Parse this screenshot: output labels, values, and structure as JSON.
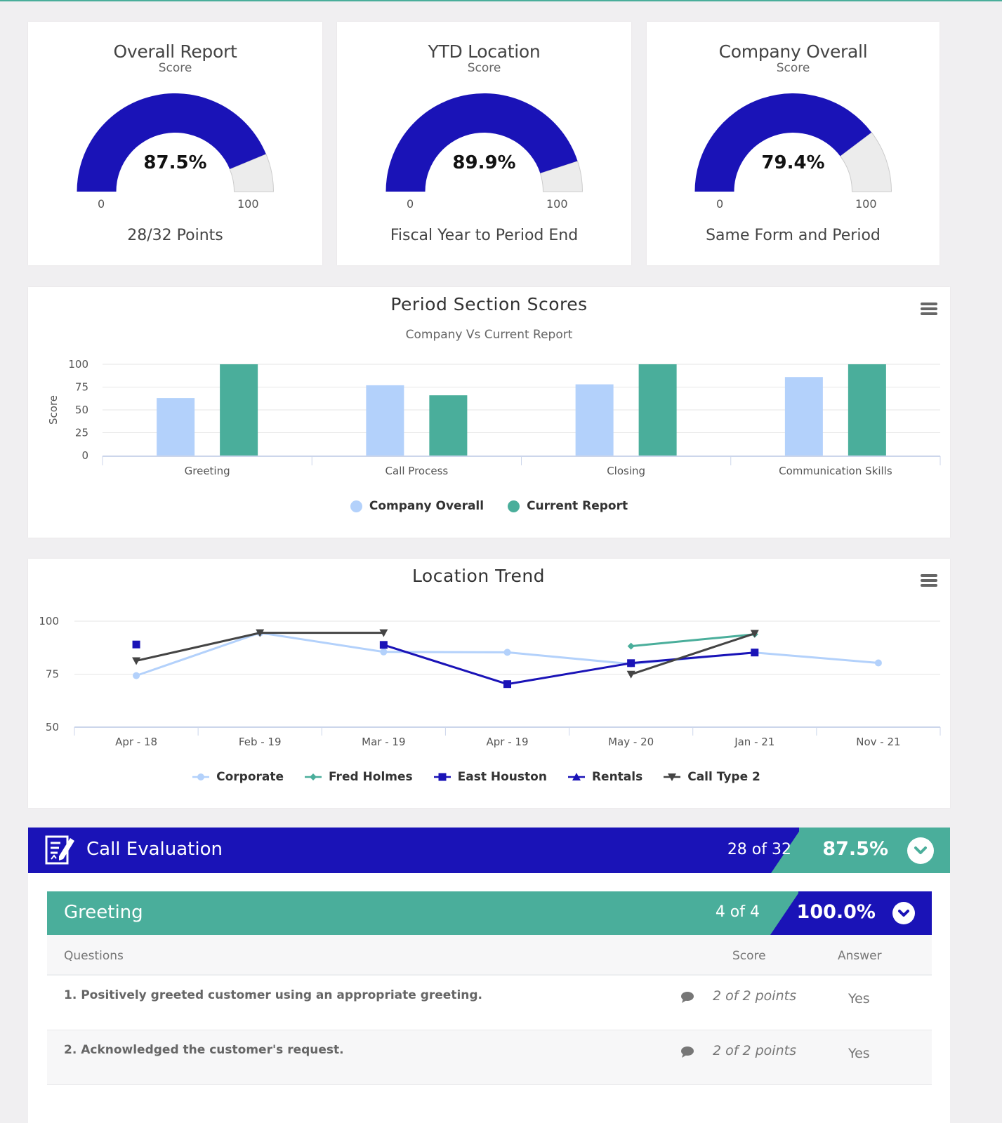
{
  "colors": {
    "primary_blue": "#1a13b7",
    "teal": "#4aae9b",
    "light_blue": "#b3d1fb",
    "gauge_track": "#ececec",
    "dark_gray": "#444444"
  },
  "gauges": [
    {
      "title": "Overall Report",
      "subtitle": "Score",
      "value": 87.5,
      "value_label": "87.5%",
      "min": "0",
      "max": "100",
      "footer": "28/32 Points"
    },
    {
      "title": "YTD Location",
      "subtitle": "Score",
      "value": 89.9,
      "value_label": "89.9%",
      "min": "0",
      "max": "100",
      "footer": "Fiscal Year to Period End"
    },
    {
      "title": "Company Overall",
      "subtitle": "Score",
      "value": 79.4,
      "value_label": "79.4%",
      "min": "0",
      "max": "100",
      "footer": "Same Form and Period"
    }
  ],
  "chart_data": [
    {
      "type": "bar",
      "title": "Period Section Scores",
      "subtitle": "Company Vs Current Report",
      "xlabel": "",
      "ylabel": "Score",
      "ylim": [
        0,
        100
      ],
      "yticks": [
        "0",
        "25",
        "50",
        "75",
        "100"
      ],
      "grid": true,
      "legend_position": "bottom-center",
      "categories": [
        "Greeting",
        "Call Process",
        "Closing",
        "Communication Skills"
      ],
      "series": [
        {
          "name": "Company Overall",
          "color": "#b3d1fb",
          "values": [
            63,
            77,
            78,
            86
          ]
        },
        {
          "name": "Current Report",
          "color": "#4aae9b",
          "values": [
            100,
            66,
            100,
            100
          ]
        }
      ]
    },
    {
      "type": "line",
      "title": "Location Trend",
      "xlabel": "",
      "ylabel": "",
      "ylim": [
        50,
        100
      ],
      "yticks": [
        "50",
        "75",
        "100"
      ],
      "grid": true,
      "legend_position": "bottom-center",
      "categories": [
        "Apr - 18",
        "Feb - 19",
        "Mar - 19",
        "Apr - 19",
        "May - 20",
        "Jan - 21",
        "Nov - 21"
      ],
      "series": [
        {
          "name": "Corporate",
          "color": "#b3d1fb",
          "marker": "circle",
          "values": [
            74.3,
            94.5,
            85.5,
            85.3,
            79.8,
            85.2,
            80.3
          ]
        },
        {
          "name": "Fred Holmes",
          "color": "#4aae9b",
          "marker": "diamond",
          "values": [
            null,
            null,
            null,
            null,
            88.2,
            93.8,
            null
          ]
        },
        {
          "name": "East Houston",
          "color": "#1a13b7",
          "marker": "square",
          "values": [
            89.0,
            null,
            88.8,
            70.3,
            80.2,
            85.2,
            null
          ]
        },
        {
          "name": "Rentals",
          "color": "#1a13b7",
          "marker": "triangle",
          "values": [
            null,
            null,
            null,
            null,
            null,
            null,
            null
          ]
        },
        {
          "name": "Call Type 2",
          "color": "#444444",
          "marker": "triangle-down",
          "values": [
            81.3,
            94.5,
            94.5,
            null,
            74.9,
            94.2,
            null
          ]
        }
      ]
    }
  ],
  "evaluation": {
    "title": "Call Evaluation",
    "count": "28 of 32",
    "percent": "87.5%",
    "sections": [
      {
        "title": "Greeting",
        "count": "4 of 4",
        "percent": "100.0%",
        "columns": {
          "question": "Questions",
          "score": "Score",
          "answer": "Answer"
        },
        "questions": [
          {
            "text": "1. Positively greeted customer using an appropriate greeting.",
            "score": "2 of 2 points",
            "answer": "Yes"
          },
          {
            "text": "2. Acknowledged the customer's request.",
            "score": "2 of 2 points",
            "answer": "Yes"
          }
        ]
      }
    ]
  }
}
